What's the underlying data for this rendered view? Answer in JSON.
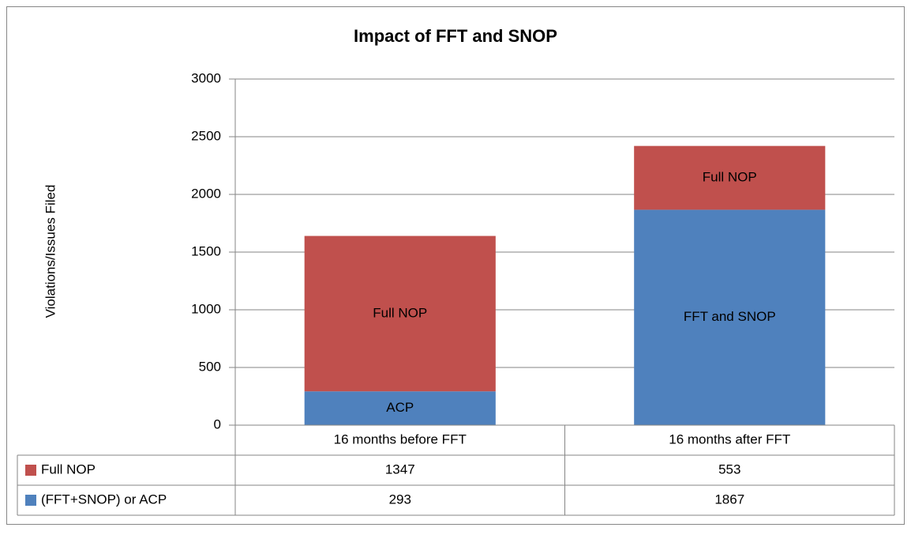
{
  "chart_data": {
    "type": "stacked_bar",
    "title": "Impact of FFT and SNOP",
    "y_label": "Violations/Issues Filed",
    "categories": [
      "16 months before FFT",
      "16 months after FFT"
    ],
    "series": [
      {
        "name": "(FFT+SNOP) or ACP",
        "color": "#4f81bd",
        "values": [
          293,
          1867
        ],
        "segment_labels": [
          "ACP",
          "FFT and SNOP"
        ]
      },
      {
        "name": "Full NOP",
        "color": "#c0504d",
        "values": [
          1347,
          553
        ],
        "segment_labels": [
          "Full NOP",
          "Full NOP"
        ]
      }
    ],
    "ylim": [
      0,
      3000
    ],
    "yticks": [
      0,
      500,
      1000,
      1500,
      2000,
      2500,
      3000
    ],
    "grid": true,
    "data_table": true
  }
}
